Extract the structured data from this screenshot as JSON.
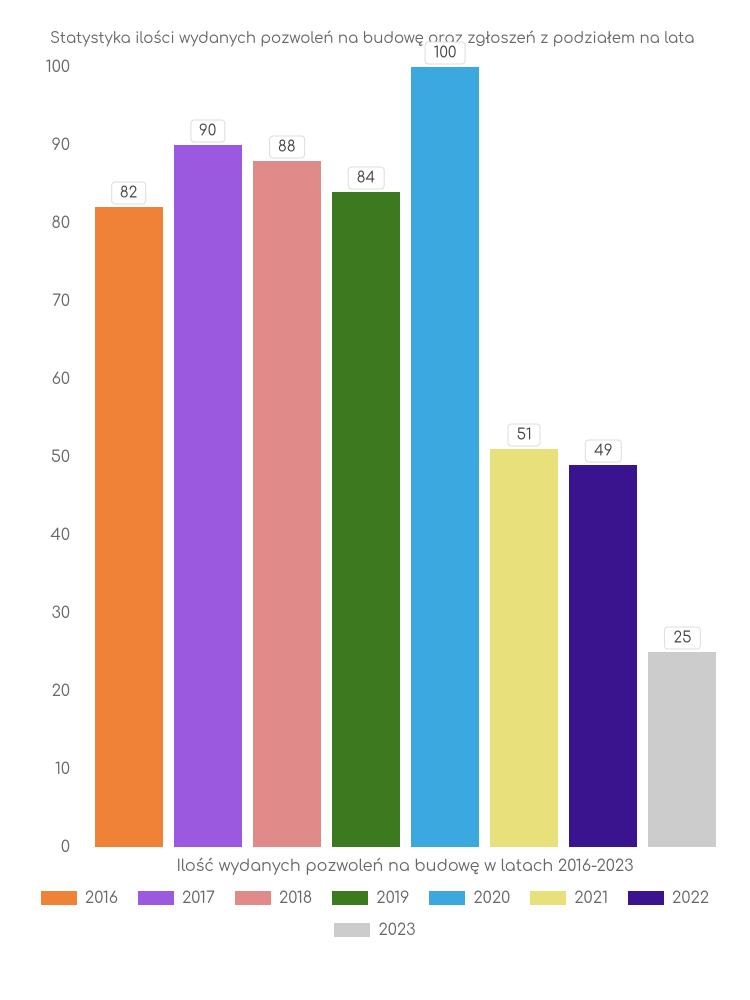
{
  "chart": {
    "type": "bar",
    "title": "Statystyka ilości wydanych pozwoleń na budowę oraz zgłoszeń z podziałem na lata",
    "title_fontsize": 15,
    "title_color": "#666666",
    "xlabel": "Ilość wydanych pozwoleń na budowę w latach 2016-2023",
    "label_fontsize": 16,
    "label_color": "#666666",
    "ylim": [
      0,
      100
    ],
    "ytick_step": 10,
    "yticks": [
      "0",
      "10",
      "20",
      "30",
      "40",
      "50",
      "60",
      "70",
      "80",
      "90",
      "100"
    ],
    "background_color": "#ffffff",
    "bar_width": 0.8,
    "value_label_bg": "#ffffff",
    "value_label_border": "#dddddd",
    "series": [
      {
        "year": "2016",
        "value": 82,
        "color": "#f08238"
      },
      {
        "year": "2017",
        "value": 90,
        "color": "#9b59e0"
      },
      {
        "year": "2018",
        "value": 88,
        "color": "#e08a8a"
      },
      {
        "year": "2019",
        "value": 84,
        "color": "#3d7a1f"
      },
      {
        "year": "2020",
        "value": 100,
        "color": "#3ba9e0"
      },
      {
        "year": "2021",
        "value": 51,
        "color": "#e8e07a"
      },
      {
        "year": "2022",
        "value": 49,
        "color": "#3a148f"
      },
      {
        "year": "2023",
        "value": 25,
        "color": "#cccccc"
      }
    ]
  }
}
